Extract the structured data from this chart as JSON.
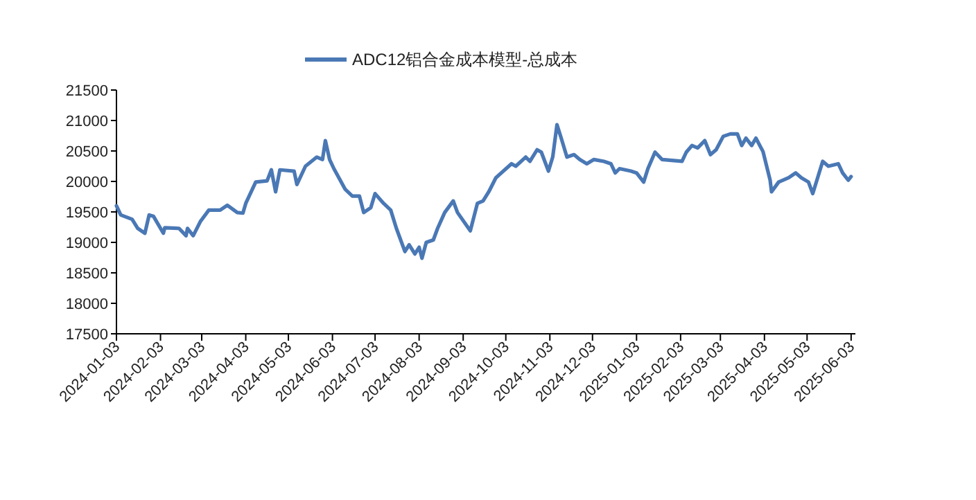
{
  "chart_data": {
    "type": "line",
    "legend": "top",
    "grid": false,
    "xlim": [
      "2024-01-03",
      "2025-06-06"
    ],
    "xticks": [
      "2024-01-03",
      "2024-02-03",
      "2024-03-03",
      "2024-04-03",
      "2024-05-03",
      "2024-06-03",
      "2024-07-03",
      "2024-08-03",
      "2024-09-03",
      "2024-10-03",
      "2024-11-03",
      "2024-12-03",
      "2025-01-03",
      "2025-02-03",
      "2025-03-03",
      "2025-04-03",
      "2025-05-03",
      "2025-06-03"
    ],
    "ylim": [
      17500,
      21500
    ],
    "yticks": [
      17500,
      18000,
      18500,
      19000,
      19500,
      20000,
      20500,
      21000,
      21500
    ],
    "series": [
      {
        "name": "ADC12铝合金成本模型-总成本",
        "color": "#4a78b5",
        "x": [
          "2024-01-03",
          "2024-01-06",
          "2024-01-14",
          "2024-01-18",
          "2024-01-23",
          "2024-01-26",
          "2024-01-29",
          "2024-02-05",
          "2024-02-06",
          "2024-02-16",
          "2024-02-21",
          "2024-02-22",
          "2024-02-26",
          "2024-03-02",
          "2024-03-08",
          "2024-03-16",
          "2024-03-21",
          "2024-03-28",
          "2024-04-01",
          "2024-04-03",
          "2024-04-10",
          "2024-04-18",
          "2024-04-21",
          "2024-04-24",
          "2024-04-27",
          "2024-05-07",
          "2024-05-09",
          "2024-05-15",
          "2024-05-23",
          "2024-05-27",
          "2024-05-29",
          "2024-06-01",
          "2024-06-04",
          "2024-06-12",
          "2024-06-17",
          "2024-06-22",
          "2024-06-25",
          "2024-06-30",
          "2024-07-03",
          "2024-07-09",
          "2024-07-14",
          "2024-07-18",
          "2024-07-24",
          "2024-07-27",
          "2024-07-31",
          "2024-08-03",
          "2024-08-05",
          "2024-08-08",
          "2024-08-13",
          "2024-08-16",
          "2024-08-21",
          "2024-08-27",
          "2024-08-30",
          "2024-09-08",
          "2024-09-13",
          "2024-09-17",
          "2024-09-21",
          "2024-09-26",
          "2024-10-07",
          "2024-10-10",
          "2024-10-17",
          "2024-10-20",
          "2024-10-25",
          "2024-10-28",
          "2024-11-02",
          "2024-11-05",
          "2024-11-08",
          "2024-11-11",
          "2024-11-15",
          "2024-11-20",
          "2024-11-24",
          "2024-11-29",
          "2024-12-04",
          "2024-12-11",
          "2024-12-16",
          "2024-12-19",
          "2024-12-22",
          "2024-12-30",
          "2025-01-03",
          "2025-01-08",
          "2025-01-11",
          "2025-01-16",
          "2025-01-21",
          "2025-02-04",
          "2025-02-07",
          "2025-02-11",
          "2025-02-15",
          "2025-02-20",
          "2025-02-24",
          "2025-02-28",
          "2025-03-05",
          "2025-03-10",
          "2025-03-15",
          "2025-03-18",
          "2025-03-21",
          "2025-03-25",
          "2025-03-28",
          "2025-04-02",
          "2025-04-07",
          "2025-04-08",
          "2025-04-13",
          "2025-04-20",
          "2025-04-25",
          "2025-04-29",
          "2025-05-04",
          "2025-05-07",
          "2025-05-14",
          "2025-05-18",
          "2025-05-25",
          "2025-05-28",
          "2025-06-01",
          "2025-06-03"
        ],
        "values": [
          19600,
          19450,
          19380,
          19230,
          19150,
          19450,
          19430,
          19150,
          19240,
          19230,
          19110,
          19230,
          19110,
          19340,
          19530,
          19530,
          19610,
          19490,
          19480,
          19640,
          19990,
          20010,
          20190,
          19830,
          20190,
          20170,
          19950,
          20250,
          20400,
          20360,
          20670,
          20360,
          20210,
          19870,
          19760,
          19760,
          19490,
          19570,
          19800,
          19640,
          19530,
          19230,
          18850,
          18960,
          18810,
          18920,
          18740,
          19000,
          19040,
          19230,
          19490,
          19680,
          19490,
          19190,
          19640,
          19680,
          19830,
          20060,
          20290,
          20250,
          20400,
          20330,
          20520,
          20480,
          20170,
          20400,
          20930,
          20710,
          20400,
          20440,
          20360,
          20290,
          20360,
          20330,
          20290,
          20140,
          20210,
          20170,
          20140,
          19990,
          20210,
          20480,
          20360,
          20330,
          20480,
          20590,
          20550,
          20670,
          20440,
          20520,
          20740,
          20780,
          20780,
          20590,
          20710,
          20590,
          20710,
          20490,
          20020,
          19830,
          19990,
          20060,
          20140,
          20060,
          19990,
          19800,
          20330,
          20250,
          20290,
          20140,
          20020,
          20080
        ]
      }
    ]
  }
}
